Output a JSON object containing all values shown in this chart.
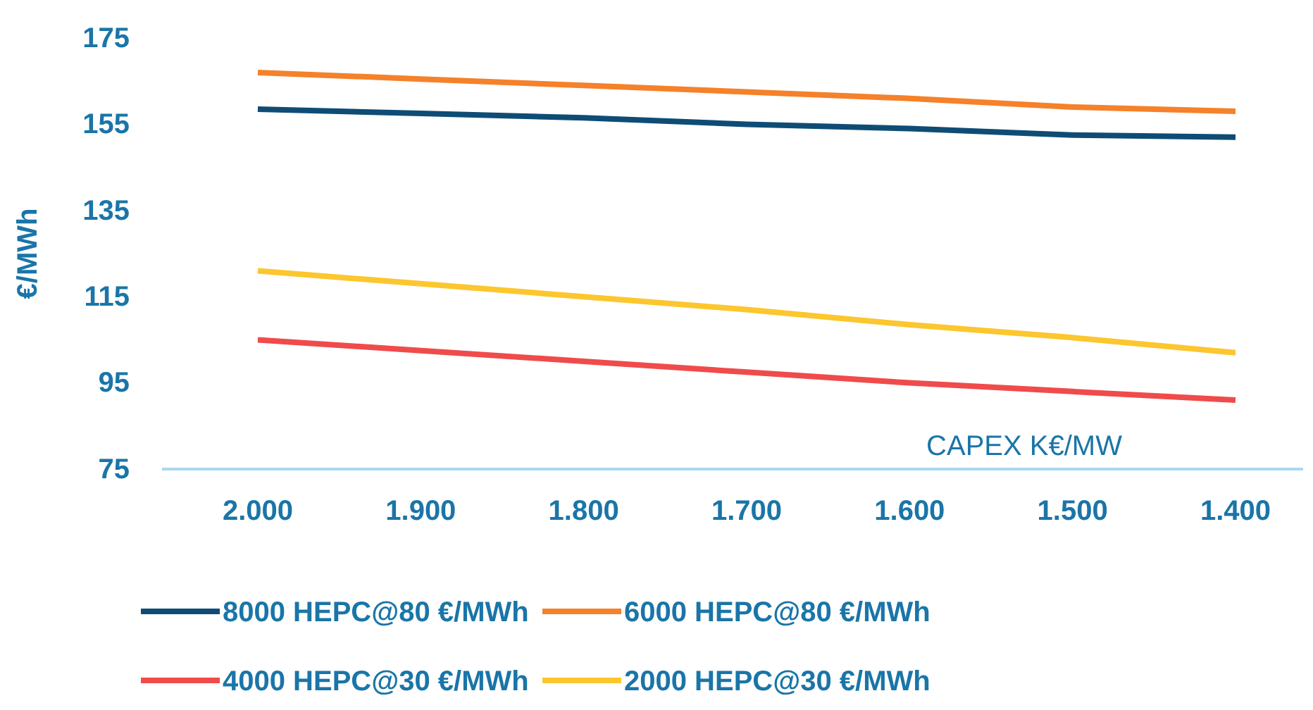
{
  "chart_data": {
    "type": "line",
    "xlabel": "CAPEX K€/MW",
    "ylabel": "€/MWh",
    "categories": [
      "2.000",
      "1.900",
      "1.800",
      "1.700",
      "1.600",
      "1.500",
      "1.400"
    ],
    "series": [
      {
        "name": "8000 HEPC@80 €/MWh",
        "color": "#0f4c75",
        "values": [
          158.5,
          157.5,
          156.5,
          155,
          154,
          152.5,
          152
        ]
      },
      {
        "name": "6000 HEPC@80 €/MWh",
        "color": "#f5812a",
        "values": [
          167,
          165.5,
          164,
          162.5,
          161,
          159,
          158
        ]
      },
      {
        "name": "4000 HEPC@30 €/MWh",
        "color": "#f04b4b",
        "values": [
          105,
          102.5,
          100,
          97.5,
          95,
          93,
          91
        ]
      },
      {
        "name": "2000 HEPC@30 €/MWh",
        "color": "#fcc62e",
        "values": [
          121,
          118,
          115,
          112,
          108.5,
          105.5,
          102
        ]
      }
    ],
    "ylim": [
      75,
      175
    ],
    "yticks": [
      75,
      95,
      115,
      135,
      155,
      175
    ],
    "grid": false,
    "legend": "bottom",
    "marker": "none",
    "line_style": "solid"
  }
}
